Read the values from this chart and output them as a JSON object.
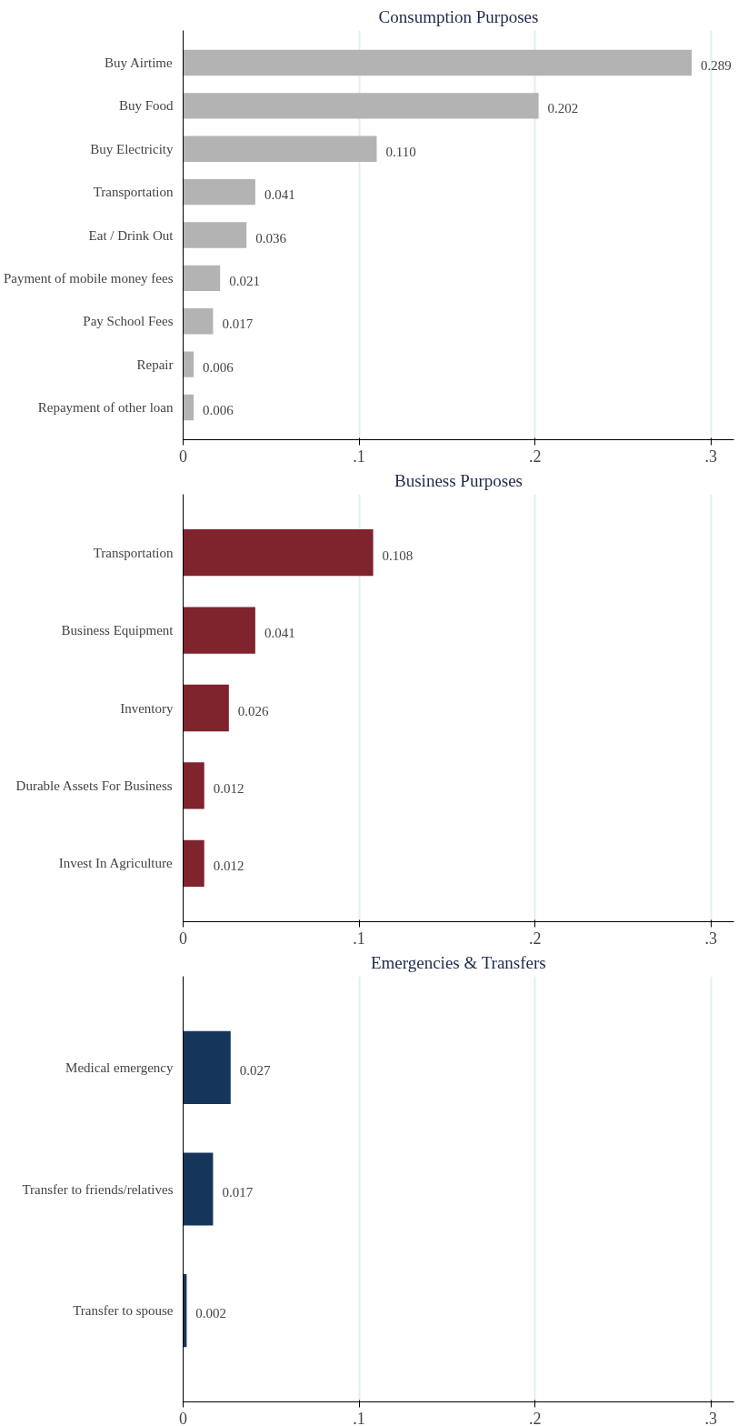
{
  "chart_data": [
    {
      "type": "bar",
      "orientation": "horizontal",
      "title": "Consumption Purposes",
      "categories": [
        "Buy Airtime",
        "Buy Food",
        "Buy Electricity",
        "Transportation",
        "Eat / Drink Out",
        "Payment of mobile money fees",
        "Pay School Fees",
        "Repair",
        "Repayment of other loan"
      ],
      "values": [
        0.289,
        0.202,
        0.11,
        0.041,
        0.036,
        0.021,
        0.017,
        0.006,
        0.006
      ],
      "value_labels": [
        "0.289",
        "0.202",
        "0.110",
        "0.041",
        "0.036",
        "0.021",
        "0.017",
        "0.006",
        "0.006"
      ],
      "color": "#b3b3b3",
      "xlim": [
        0,
        0.313
      ],
      "xticks": [
        0,
        {
          "value": 0.1,
          "label": ".1"
        },
        {
          "value": 0.2,
          "label": ".2"
        },
        {
          "value": 0.3,
          "label": ".3"
        }
      ],
      "grid": "x"
    },
    {
      "type": "bar",
      "orientation": "horizontal",
      "title": "Business Purposes",
      "categories": [
        "Transportation",
        "Business Equipment",
        "Inventory",
        "Durable Assets For Business",
        "Invest In Agriculture"
      ],
      "values": [
        0.108,
        0.041,
        0.026,
        0.012,
        0.012
      ],
      "value_labels": [
        "0.108",
        "0.041",
        "0.026",
        "0.012",
        "0.012"
      ],
      "color": "#7f232d",
      "xlim": [
        0,
        0.313
      ],
      "xticks": [
        0,
        {
          "value": 0.1,
          "label": ".1"
        },
        {
          "value": 0.2,
          "label": ".2"
        },
        {
          "value": 0.3,
          "label": ".3"
        }
      ],
      "grid": "x"
    },
    {
      "type": "bar",
      "orientation": "horizontal",
      "title": "Emergencies & Transfers",
      "categories": [
        "Medical emergency",
        "Transfer to friends/relatives",
        "Transfer to spouse"
      ],
      "values": [
        0.027,
        0.017,
        0.002
      ],
      "value_labels": [
        "0.027",
        "0.017",
        "0.002"
      ],
      "color": "#16355b",
      "xlim": [
        0,
        0.313
      ],
      "xticks": [
        0,
        {
          "value": 0.1,
          "label": ".1"
        },
        {
          "value": 0.2,
          "label": ".2"
        },
        {
          "value": 0.3,
          "label": ".3"
        }
      ],
      "grid": "x"
    }
  ]
}
